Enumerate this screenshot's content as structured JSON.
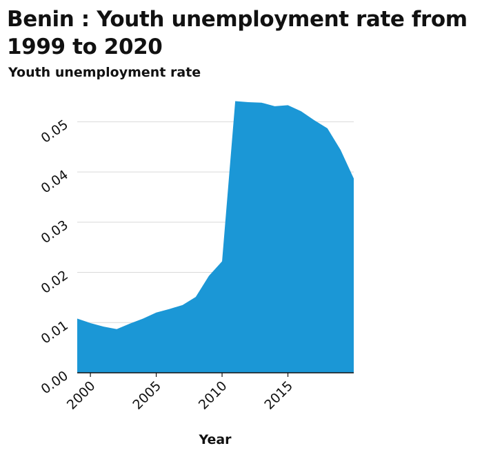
{
  "chart_data": {
    "type": "area",
    "title": "Benin : Youth unemployment rate from 1999 to 2020",
    "ylabel": "Youth unemployment rate",
    "xlabel": "Year",
    "x": [
      1999,
      2000,
      2001,
      2002,
      2003,
      2004,
      2005,
      2006,
      2007,
      2008,
      2009,
      2010,
      2011,
      2012,
      2013,
      2014,
      2015,
      2016,
      2017,
      2018,
      2019,
      2020
    ],
    "series": [
      {
        "values": [
          0.0108,
          0.0099,
          0.0092,
          0.0087,
          0.0098,
          0.0108,
          0.012,
          0.0127,
          0.0135,
          0.0151,
          0.0193,
          0.0222,
          0.0541,
          0.0539,
          0.0538,
          0.0531,
          0.0533,
          0.0521,
          0.0503,
          0.0487,
          0.0444,
          0.0387
        ],
        "color": "#1b97d6"
      }
    ],
    "xlim": [
      1999,
      2020
    ],
    "ylim": [
      0,
      0.055
    ],
    "xticks": [
      2000,
      2005,
      2010,
      2015
    ],
    "xtick_labels": [
      "2000",
      "2005",
      "2010",
      "2015"
    ],
    "yticks": [
      0.0,
      0.01,
      0.02,
      0.03,
      0.04,
      0.05
    ],
    "ytick_labels": [
      "0.00",
      "0.01",
      "0.02",
      "0.03",
      "0.04",
      "0.05"
    ],
    "grid": "horizontal",
    "legend": "none"
  }
}
